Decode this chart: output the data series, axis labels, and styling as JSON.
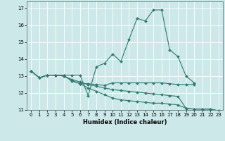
{
  "xlabel": "Humidex (Indice chaleur)",
  "bg_color": "#cce8e8",
  "grid_color": "#ffffff",
  "line_color": "#2d7a70",
  "xlim": [
    -0.5,
    23.5
  ],
  "ylim": [
    11,
    17.4
  ],
  "xticks": [
    0,
    1,
    2,
    3,
    4,
    5,
    6,
    7,
    8,
    9,
    10,
    11,
    12,
    13,
    14,
    15,
    16,
    17,
    18,
    19,
    20,
    21,
    22,
    23
  ],
  "yticks": [
    11,
    12,
    13,
    14,
    15,
    16,
    17
  ],
  "lines": [
    {
      "x": [
        0,
        1,
        2,
        3,
        4,
        5,
        6,
        7,
        8,
        9,
        10,
        11,
        12,
        13,
        14,
        15,
        16,
        17,
        18,
        19,
        20
      ],
      "y": [
        13.3,
        12.9,
        13.05,
        13.05,
        13.05,
        13.05,
        13.05,
        11.85,
        13.55,
        13.75,
        14.3,
        13.85,
        15.15,
        16.4,
        16.25,
        16.9,
        16.9,
        14.55,
        14.15,
        13.0,
        12.6
      ]
    },
    {
      "x": [
        0,
        1,
        2,
        3,
        4,
        5,
        6,
        7,
        8,
        9,
        10,
        11,
        12,
        13,
        14,
        15,
        16,
        17,
        18,
        19,
        20
      ],
      "y": [
        13.3,
        12.9,
        13.05,
        13.05,
        13.05,
        12.7,
        12.55,
        12.55,
        12.5,
        12.45,
        12.6,
        12.6,
        12.6,
        12.6,
        12.6,
        12.6,
        12.6,
        12.55,
        12.5,
        12.5,
        12.5
      ]
    },
    {
      "x": [
        0,
        1,
        2,
        3,
        4,
        5,
        6,
        7,
        8,
        9,
        10,
        11,
        12,
        13,
        14,
        15,
        16,
        17,
        18,
        19,
        20,
        21,
        22,
        23
      ],
      "y": [
        13.3,
        12.9,
        13.05,
        13.05,
        13.0,
        12.75,
        12.55,
        12.3,
        12.1,
        11.9,
        11.7,
        11.6,
        11.55,
        11.5,
        11.45,
        11.4,
        11.4,
        11.35,
        11.3,
        11.1,
        11.05,
        11.05,
        11.05,
        10.95
      ]
    },
    {
      "x": [
        0,
        1,
        2,
        3,
        4,
        5,
        6,
        7,
        8,
        9,
        10,
        11,
        12,
        13,
        14,
        15,
        16,
        17,
        18,
        19,
        20,
        21,
        22,
        23
      ],
      "y": [
        13.3,
        12.9,
        13.05,
        13.05,
        13.0,
        12.8,
        12.65,
        12.5,
        12.4,
        12.3,
        12.2,
        12.15,
        12.1,
        12.05,
        12.0,
        11.95,
        11.9,
        11.85,
        11.8,
        11.1,
        11.05,
        11.05,
        11.05,
        10.95
      ]
    }
  ]
}
